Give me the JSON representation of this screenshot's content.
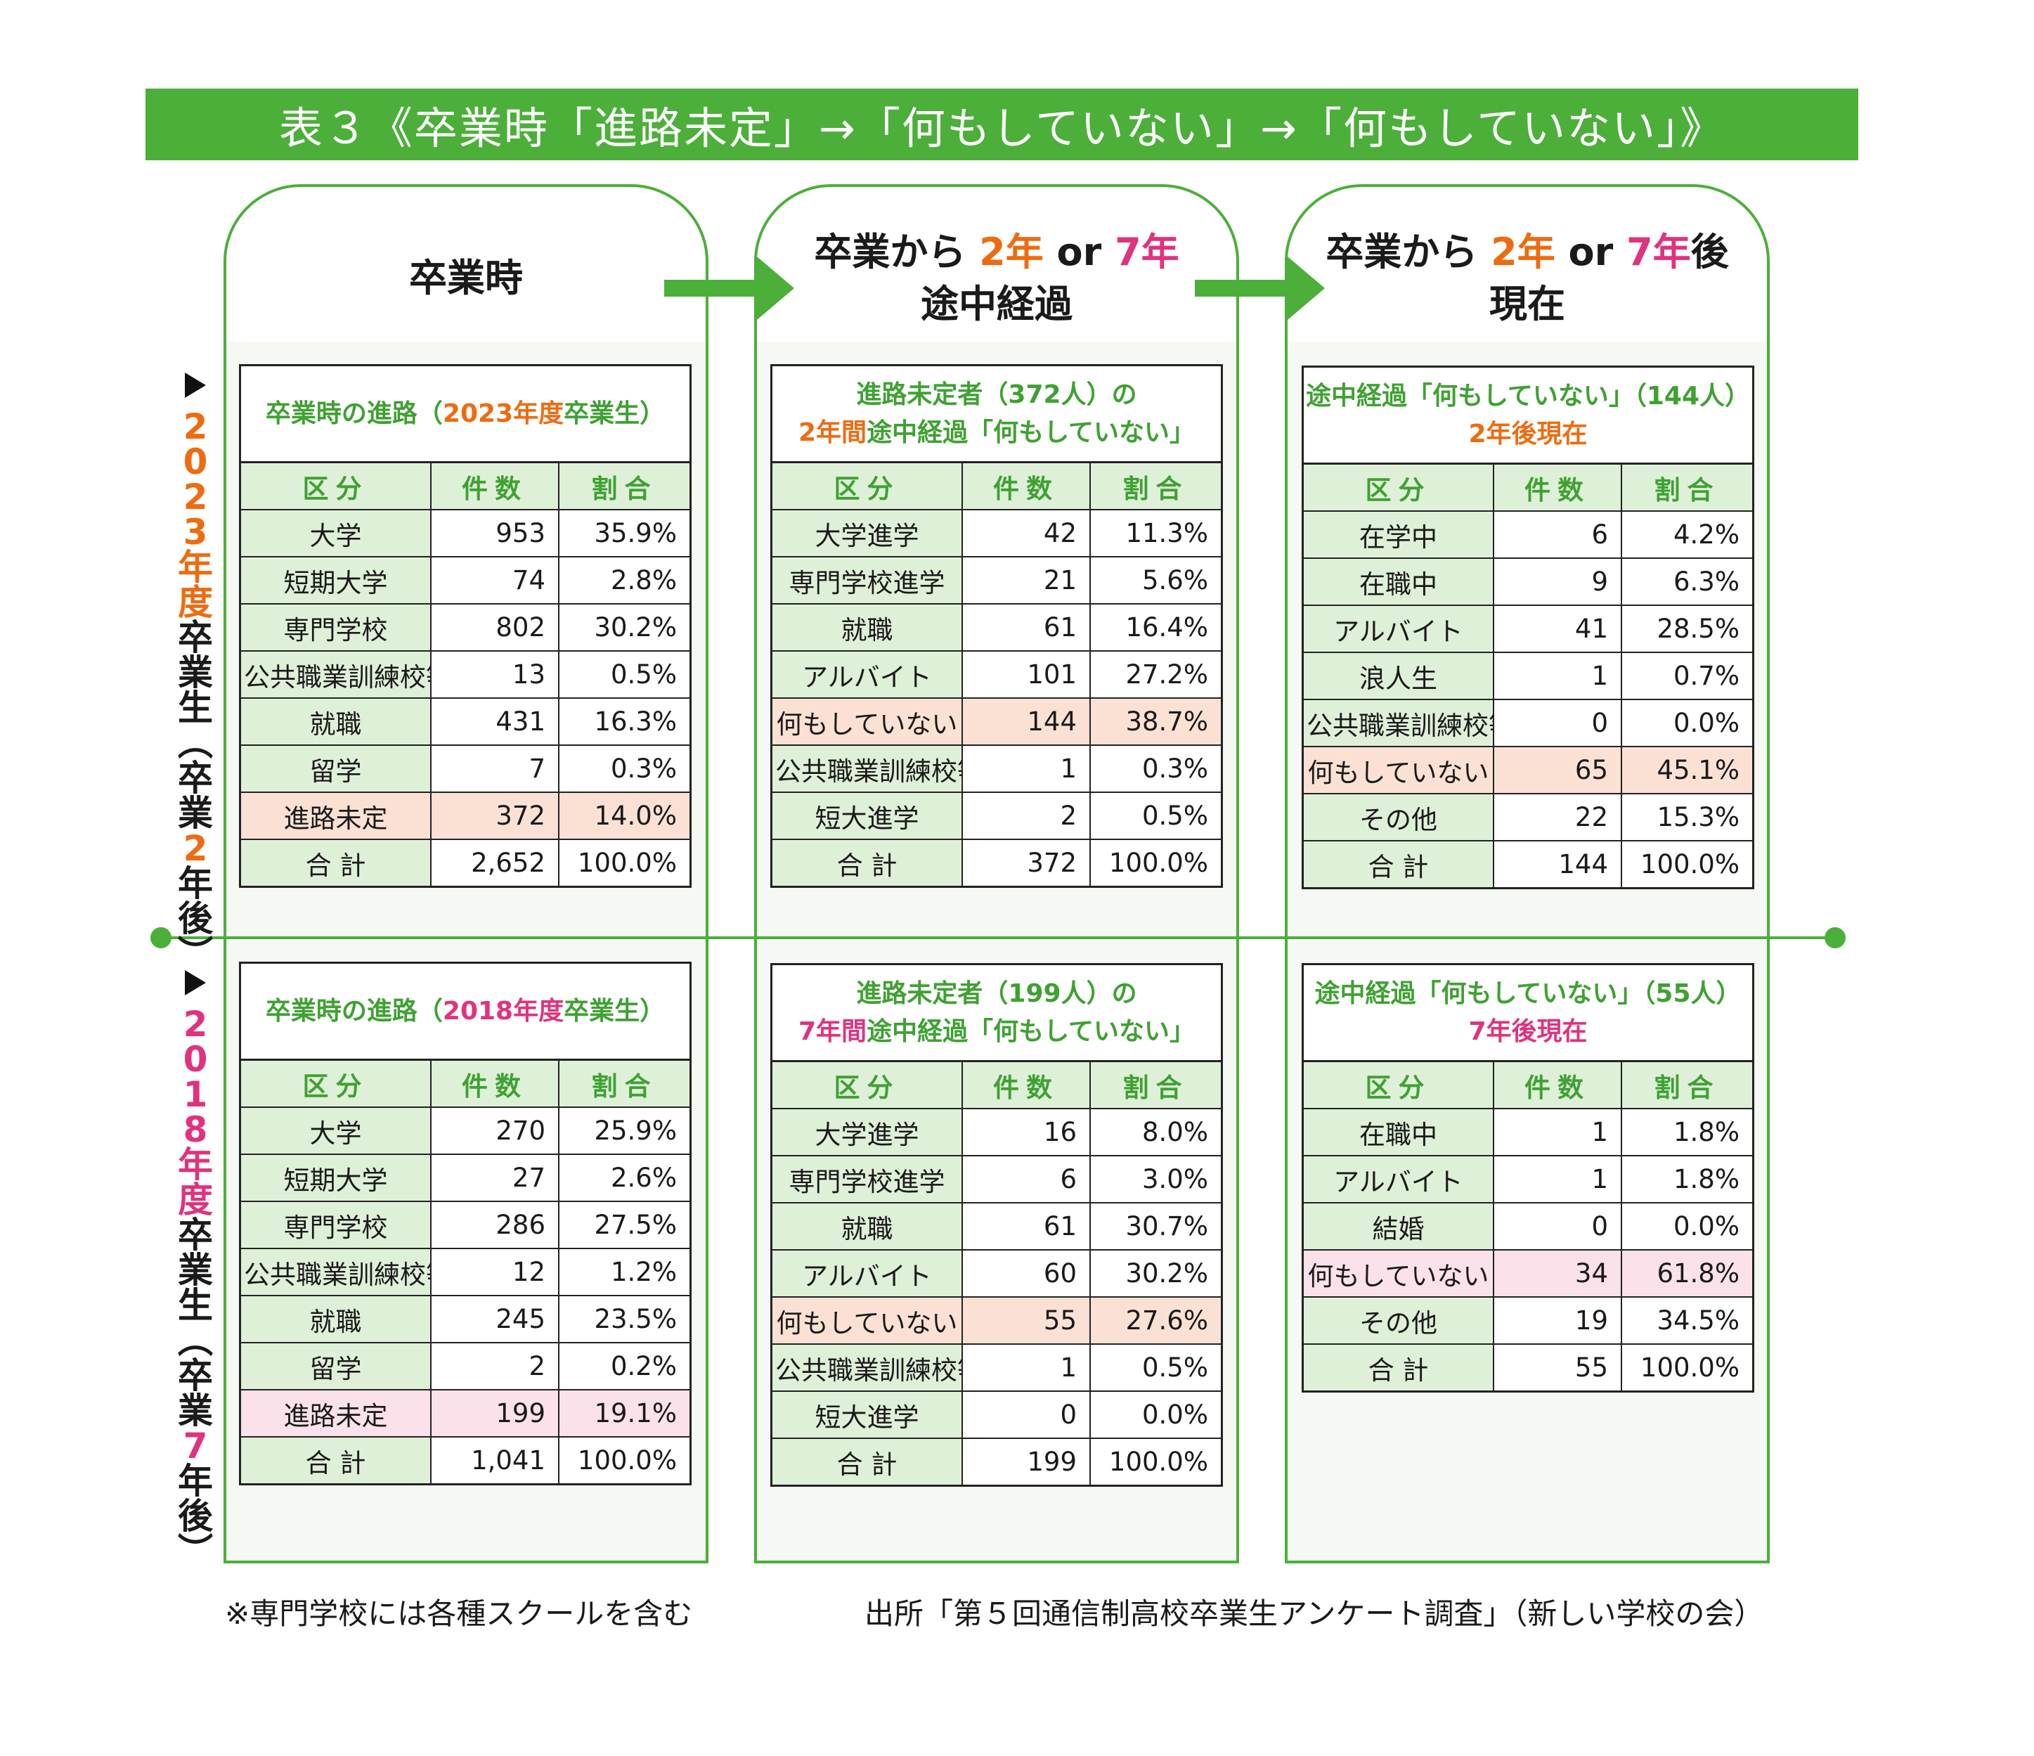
{
  "title": "表３《卒業時「進路未定」→「何もしていない」→「何もしていない」》",
  "colors": {
    "green": "#4caf3a",
    "orange": "#ee6b10",
    "pink": "#e0327e",
    "label_bg": "#dff0d8",
    "highlight": "#fbe1d4"
  },
  "panels": [
    {
      "line1": "卒業時"
    },
    {
      "line1_a": "卒業から ",
      "line1_b": "2年",
      "line1_c": " or ",
      "line1_d": "7年",
      "line2": "途中経過"
    },
    {
      "line1_a": "卒業から ",
      "line1_b": "2年",
      "line1_c": " or ",
      "line1_d": "7年",
      "line1_e": "後",
      "line2": "現在"
    }
  ],
  "side_labels": {
    "top": {
      "colored": [
        "2",
        "0",
        "2",
        "3",
        "年",
        "度"
      ],
      "rest": [
        "卒",
        "業",
        "生",
        "︵",
        "卒",
        "業"
      ],
      "num": "2",
      "tail": [
        "年",
        "後",
        "︶"
      ]
    },
    "bottom": {
      "colored": [
        "2",
        "0",
        "1",
        "8",
        "年",
        "度"
      ],
      "rest": [
        "卒",
        "業",
        "生",
        "︵",
        "卒",
        "業"
      ],
      "num": "7",
      "tail": [
        "年",
        "後",
        "︶"
      ]
    }
  },
  "header": {
    "kubun": "区分",
    "kensu": "件数",
    "wariai": "割合"
  },
  "tables": {
    "t2023_grad": {
      "cap_a": "卒業時の進路（",
      "cap_b": "2023年度",
      "cap_c": "卒業生）",
      "rows": [
        {
          "label": "大学",
          "count": "953",
          "pct": "35.9%"
        },
        {
          "label": "短期大学",
          "count": "74",
          "pct": "2.8%"
        },
        {
          "label": "専門学校",
          "count": "802",
          "pct": "30.2%"
        },
        {
          "label": "公共職業訓練校等",
          "count": "13",
          "pct": "0.5%"
        },
        {
          "label": "就職",
          "count": "431",
          "pct": "16.3%"
        },
        {
          "label": "留学",
          "count": "7",
          "pct": "0.3%"
        },
        {
          "label": "進路未定",
          "count": "372",
          "pct": "14.0%"
        },
        {
          "label": "合 計",
          "count": "2,652",
          "pct": "100.0%"
        }
      ]
    },
    "t2023_mid": {
      "cap1": "進路未定者（372人）の",
      "cap2_a": "2年間",
      "cap2_b": "途中経過「何もしていない」",
      "rows": [
        {
          "label": "大学進学",
          "count": "42",
          "pct": "11.3%"
        },
        {
          "label": "専門学校進学",
          "count": "21",
          "pct": "5.6%"
        },
        {
          "label": "就職",
          "count": "61",
          "pct": "16.4%"
        },
        {
          "label": "アルバイト",
          "count": "101",
          "pct": "27.2%"
        },
        {
          "label": "何もしていない",
          "count": "144",
          "pct": "38.7%"
        },
        {
          "label": "公共職業訓練校等",
          "count": "1",
          "pct": "0.3%"
        },
        {
          "label": "短大進学",
          "count": "2",
          "pct": "0.5%"
        },
        {
          "label": "合 計",
          "count": "372",
          "pct": "100.0%"
        }
      ]
    },
    "t2023_now": {
      "cap1": "途中経過「何もしていない」（144人）",
      "cap2": "2年後現在",
      "rows": [
        {
          "label": "在学中",
          "count": "6",
          "pct": "4.2%"
        },
        {
          "label": "在職中",
          "count": "9",
          "pct": "6.3%"
        },
        {
          "label": "アルバイト",
          "count": "41",
          "pct": "28.5%"
        },
        {
          "label": "浪人生",
          "count": "1",
          "pct": "0.7%"
        },
        {
          "label": "公共職業訓練校等",
          "count": "0",
          "pct": "0.0%"
        },
        {
          "label": "何もしていない",
          "count": "65",
          "pct": "45.1%"
        },
        {
          "label": "その他",
          "count": "22",
          "pct": "15.3%"
        },
        {
          "label": "合 計",
          "count": "144",
          "pct": "100.0%"
        }
      ]
    },
    "t2018_grad": {
      "cap_a": "卒業時の進路（",
      "cap_b": "2018年度",
      "cap_c": "卒業生）",
      "rows": [
        {
          "label": "大学",
          "count": "270",
          "pct": "25.9%"
        },
        {
          "label": "短期大学",
          "count": "27",
          "pct": "2.6%"
        },
        {
          "label": "専門学校",
          "count": "286",
          "pct": "27.5%"
        },
        {
          "label": "公共職業訓練校等",
          "count": "12",
          "pct": "1.2%"
        },
        {
          "label": "就職",
          "count": "245",
          "pct": "23.5%"
        },
        {
          "label": "留学",
          "count": "2",
          "pct": "0.2%"
        },
        {
          "label": "進路未定",
          "count": "199",
          "pct": "19.1%"
        },
        {
          "label": "合 計",
          "count": "1,041",
          "pct": "100.0%"
        }
      ]
    },
    "t2018_mid": {
      "cap1": "進路未定者（199人）の",
      "cap2_a": "7年間",
      "cap2_b": "途中経過「何もしていない」",
      "rows": [
        {
          "label": "大学進学",
          "count": "16",
          "pct": "8.0%"
        },
        {
          "label": "専門学校進学",
          "count": "6",
          "pct": "3.0%"
        },
        {
          "label": "就職",
          "count": "61",
          "pct": "30.7%"
        },
        {
          "label": "アルバイト",
          "count": "60",
          "pct": "30.2%"
        },
        {
          "label": "何もしていない",
          "count": "55",
          "pct": "27.6%"
        },
        {
          "label": "公共職業訓練校等",
          "count": "1",
          "pct": "0.5%"
        },
        {
          "label": "短大進学",
          "count": "0",
          "pct": "0.0%"
        },
        {
          "label": "合 計",
          "count": "199",
          "pct": "100.0%"
        }
      ]
    },
    "t2018_now": {
      "cap1": "途中経過「何もしていない」（55人）",
      "cap2": "7年後現在",
      "rows": [
        {
          "label": "在職中",
          "count": "1",
          "pct": "1.8%"
        },
        {
          "label": "アルバイト",
          "count": "1",
          "pct": "1.8%"
        },
        {
          "label": "結婚",
          "count": "0",
          "pct": "0.0%"
        },
        {
          "label": "何もしていない",
          "count": "34",
          "pct": "61.8%"
        },
        {
          "label": "その他",
          "count": "19",
          "pct": "34.5%"
        },
        {
          "label": "合 計",
          "count": "55",
          "pct": "100.0%"
        }
      ]
    }
  },
  "footnotes": {
    "left": "※専門学校には各種スクールを含む",
    "right": "出所「第５回通信制高校卒業生アンケート調査」（新しい学校の会）"
  }
}
